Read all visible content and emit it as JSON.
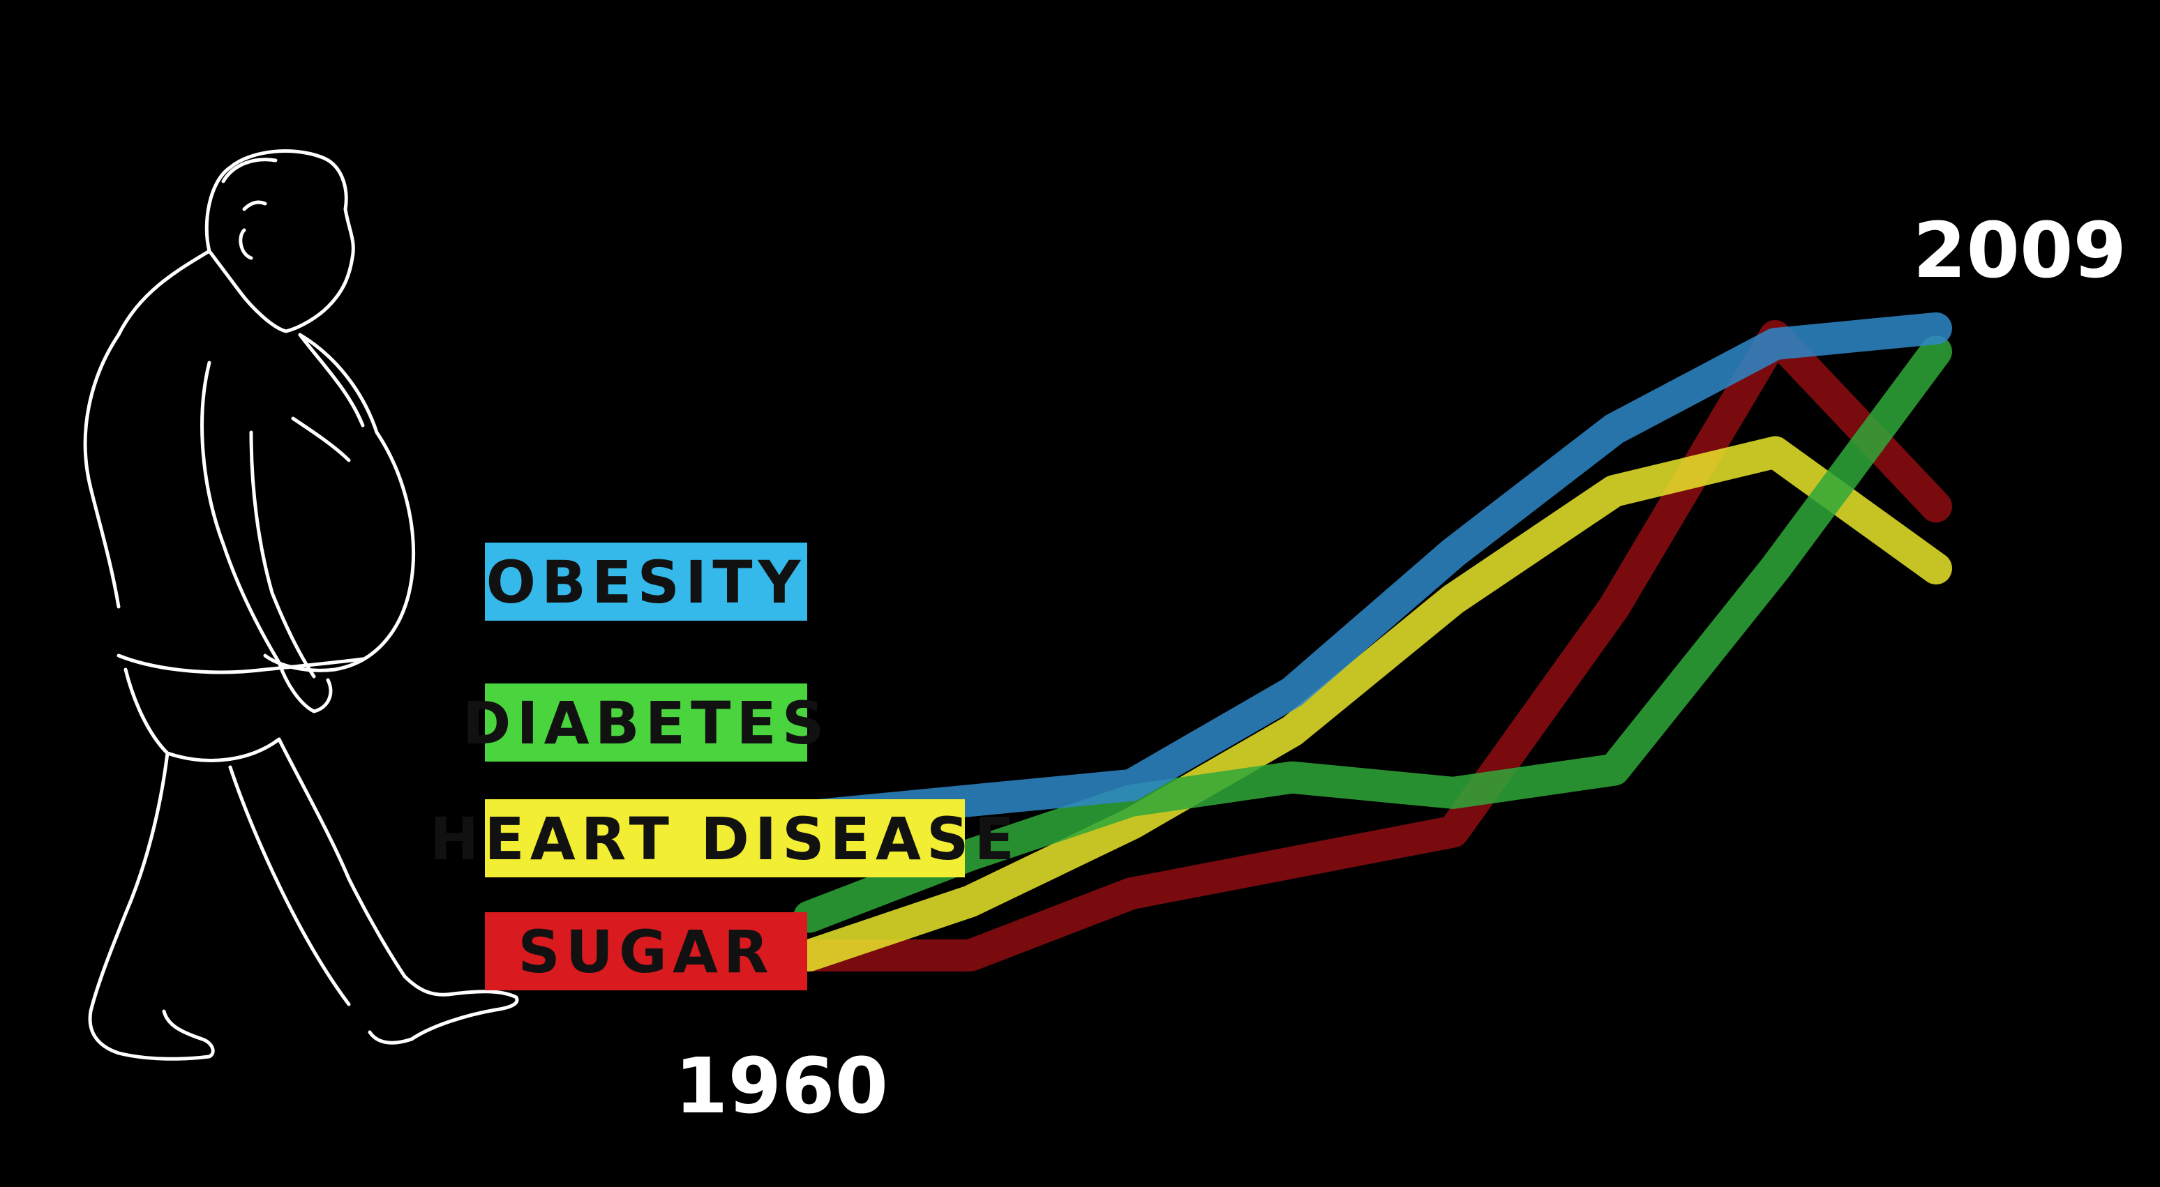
{
  "chart_data": {
    "type": "line",
    "x_start_label": "1960",
    "x_end_label": "2009",
    "grid": false,
    "legend_placement": "left",
    "series": [
      {
        "name": "OBESITY",
        "color": "#2e88c9",
        "label_color": "#35b9ea",
        "values": [
          0.18,
          0.2,
          0.22,
          0.34,
          0.52,
          0.68,
          0.79,
          0.81
        ]
      },
      {
        "name": "DIABETES",
        "color": "#2fa83a",
        "label_color": "#4ad43e",
        "values": [
          0.05,
          0.13,
          0.2,
          0.23,
          0.21,
          0.24,
          0.5,
          0.78
        ]
      },
      {
        "name": "HEART DISEASE",
        "color": "#e9e52c",
        "label_color": "#f2ee33",
        "values": [
          0.0,
          0.07,
          0.17,
          0.29,
          0.46,
          0.6,
          0.65,
          0.5
        ]
      },
      {
        "name": "SUGAR",
        "color": "#8e0d12",
        "label_color": "#d91a1f",
        "values": [
          0.0,
          0.0,
          0.08,
          0.12,
          0.16,
          0.45,
          0.8,
          0.58
        ]
      }
    ]
  },
  "icons": {
    "figure": "overweight-man-walking-icon"
  }
}
